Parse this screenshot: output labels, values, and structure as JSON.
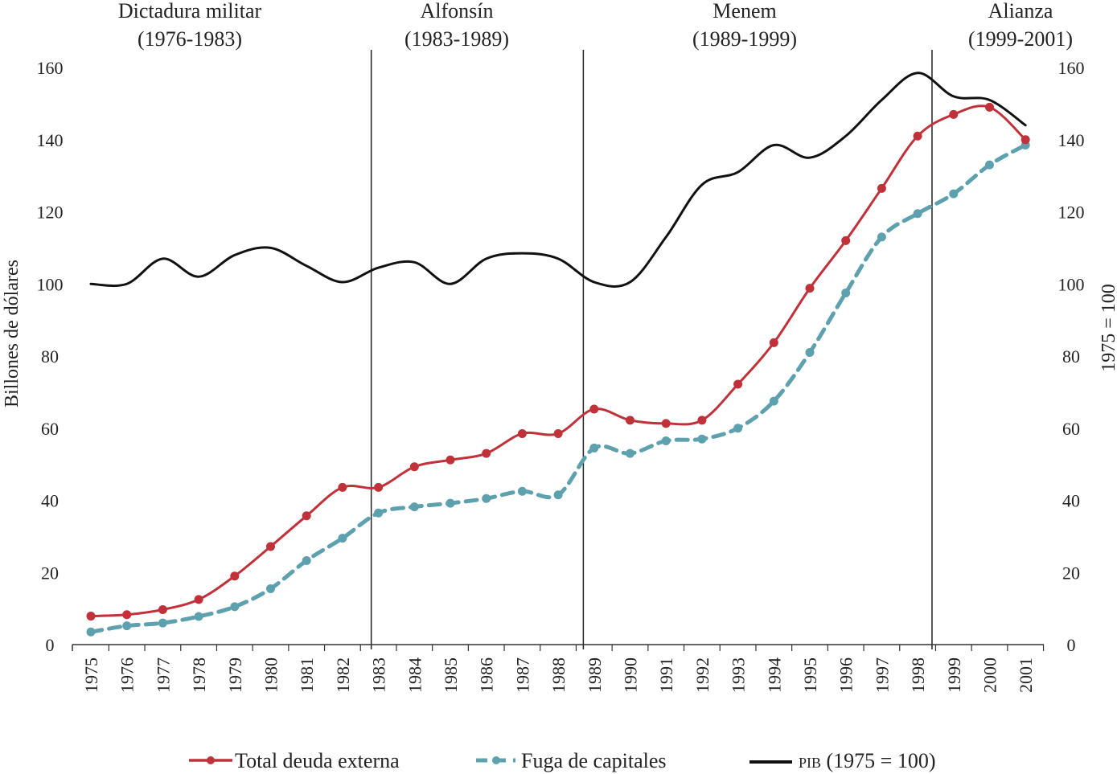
{
  "chart_data": {
    "type": "line",
    "title": "",
    "xlabel": "",
    "ylabel": "Billones de dólares",
    "ylabel_right": "1975 = 100",
    "ylim": [
      0,
      160
    ],
    "ylim_right": [
      0,
      160
    ],
    "yticks": [
      0,
      20,
      40,
      60,
      80,
      100,
      120,
      140,
      160
    ],
    "yticks_right": [
      0,
      20,
      40,
      60,
      80,
      100,
      120,
      140,
      160
    ],
    "grid": false,
    "legend_position": "bottom",
    "categories": [
      "1975",
      "1976",
      "1977",
      "1978",
      "1979",
      "1980",
      "1981",
      "1982",
      "1983",
      "1984",
      "1985",
      "1986",
      "1987",
      "1988",
      "1989",
      "1990",
      "1991",
      "1992",
      "1993",
      "1994",
      "1995",
      "1996",
      "1997",
      "1998",
      "1999",
      "2000",
      "2001"
    ],
    "series": [
      {
        "name": "Total deuda externa",
        "legend_label": "Total deuda externa",
        "color": "#c0313a",
        "style": "solid-markers",
        "axis": "left",
        "values": [
          7.9,
          8.3,
          9.7,
          12.5,
          19.0,
          27.2,
          35.7,
          43.6,
          43.6,
          49.3,
          51.2,
          53.0,
          58.5,
          58.5,
          65.3,
          62.2,
          61.3,
          62.2,
          72.2,
          83.7,
          98.8,
          112.0,
          126.5,
          141.0,
          147.0,
          149.0,
          140.0
        ]
      },
      {
        "name": "Fuga de capitales",
        "legend_label": "Fuga de capitales",
        "color": "#5ea1ae",
        "style": "dashed-markers",
        "axis": "left",
        "values": [
          3.5,
          5.2,
          6.0,
          7.8,
          10.5,
          15.5,
          23.3,
          29.5,
          36.5,
          38.2,
          39.2,
          40.5,
          42.5,
          41.5,
          54.5,
          53.0,
          56.5,
          57.0,
          60.0,
          67.5,
          81.0,
          97.5,
          113.0,
          119.5,
          125.0,
          133.0,
          138.5
        ]
      },
      {
        "name": "PIB",
        "legend_label_sc": "pib",
        "legend_label_rest": " (1975 = 100)",
        "color": "#111111",
        "style": "solid",
        "axis": "right",
        "values": [
          100,
          100,
          107,
          102,
          108,
          110,
          105,
          100.5,
          104.5,
          106,
          100,
          107,
          108.5,
          107,
          100.5,
          100.5,
          113,
          127.5,
          131,
          138.5,
          135,
          141,
          151,
          158.5,
          152,
          151,
          144
        ]
      }
    ],
    "periods": [
      {
        "name": "Dictadura militar",
        "years": "(1976-1983)",
        "end_boundary": 1982.8
      },
      {
        "name": "Alfonsín",
        "years": "(1983-1989)",
        "end_boundary": 1988.7
      },
      {
        "name": "Menem",
        "years": "(1989-1999)",
        "end_boundary": 1998.4
      },
      {
        "name": "Alianza",
        "years": "(1999-2001)",
        "end_boundary": null
      }
    ]
  }
}
